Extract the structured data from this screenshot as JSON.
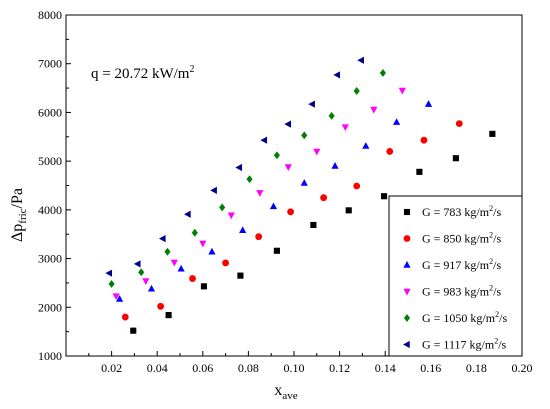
{
  "chart_data": {
    "type": "scatter",
    "annotation": {
      "text": "q = 20.72 kW/m",
      "sup": "2"
    },
    "xlabel": {
      "main": "x",
      "sub": "ave"
    },
    "ylabel": {
      "main": "Δp",
      "sub": "fric",
      "tail": "/Pa"
    },
    "xlim": [
      0.0,
      0.2
    ],
    "ylim": [
      1000,
      8000
    ],
    "x_ticks": [
      0.02,
      0.04,
      0.06,
      0.08,
      0.1,
      0.12,
      0.14,
      0.16,
      0.18,
      0.2
    ],
    "x_tick_labels": [
      "0.02",
      "0.04",
      "0.06",
      "0.08",
      "0.10",
      "0.12",
      "0.14",
      "0.16",
      "0.18",
      "0.20"
    ],
    "y_ticks": [
      1000,
      2000,
      3000,
      4000,
      5000,
      6000,
      7000,
      8000
    ],
    "y_tick_labels": [
      "1000",
      "2000",
      "3000",
      "4000",
      "5000",
      "6000",
      "7000",
      "8000"
    ],
    "grid": false,
    "legend_position": "lower-right",
    "series": [
      {
        "name": "G = 783 kg/m²/s",
        "marker": "square",
        "color": "#000000",
        "x": [
          0.0295,
          0.045,
          0.0605,
          0.0765,
          0.0925,
          0.1085,
          0.124,
          0.1395,
          0.155,
          0.171,
          0.187
        ],
        "y": [
          1520,
          1840,
          2430,
          2650,
          3160,
          3690,
          3990,
          4280,
          4780,
          5060,
          5560
        ]
      },
      {
        "name": "G = 850 kg/m²/s",
        "marker": "circle",
        "color": "#ff0000",
        "x": [
          0.026,
          0.0415,
          0.0555,
          0.07,
          0.0845,
          0.0985,
          0.113,
          0.1275,
          0.142,
          0.157,
          0.1725
        ],
        "y": [
          1800,
          2020,
          2590,
          2910,
          3450,
          3960,
          4250,
          4490,
          5200,
          5430,
          5770
        ]
      },
      {
        "name": "G = 917 kg/m²/s",
        "marker": "triangle-up",
        "color": "#0000ff",
        "x": [
          0.0235,
          0.0375,
          0.0505,
          0.064,
          0.0775,
          0.091,
          0.1045,
          0.118,
          0.1315,
          0.145,
          0.159
        ],
        "y": [
          2170,
          2380,
          2790,
          3140,
          3580,
          4070,
          4550,
          4900,
          5310,
          5800,
          6170
        ]
      },
      {
        "name": "G = 983 kg/m²/s",
        "marker": "triangle-down",
        "color": "#ff00ff",
        "x": [
          0.022,
          0.035,
          0.0475,
          0.06,
          0.0725,
          0.085,
          0.0975,
          0.11,
          0.1225,
          0.135,
          0.1475
        ],
        "y": [
          2230,
          2540,
          2920,
          3310,
          3890,
          4350,
          4880,
          5200,
          5700,
          6060,
          6450
        ]
      },
      {
        "name": "G = 1050 kg/m²/s",
        "marker": "diamond",
        "color": "#008000",
        "x": [
          0.02,
          0.033,
          0.0445,
          0.0565,
          0.0685,
          0.0805,
          0.0925,
          0.1045,
          0.1165,
          0.1275,
          0.139
        ],
        "y": [
          2480,
          2720,
          3140,
          3530,
          4050,
          4630,
          5120,
          5530,
          5930,
          6440,
          6810
        ]
      },
      {
        "name": "G = 1117 kg/m²/s",
        "marker": "triangle-left",
        "color": "#00008b",
        "x": [
          0.019,
          0.0315,
          0.0425,
          0.0535,
          0.065,
          0.076,
          0.087,
          0.0975,
          0.108,
          0.119,
          0.1295
        ],
        "y": [
          2700,
          2890,
          3410,
          3910,
          4400,
          4870,
          5430,
          5760,
          6170,
          6770,
          7070
        ]
      }
    ]
  }
}
